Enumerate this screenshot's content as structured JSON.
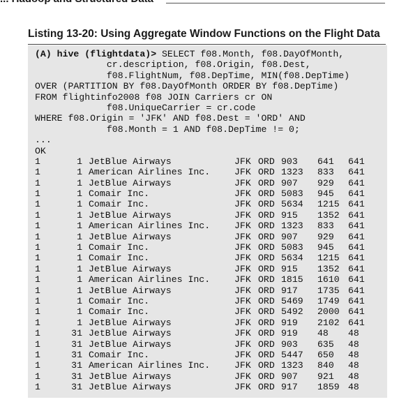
{
  "header": {
    "top_text": "... Hadoop and Structured Data",
    "listing_title": "Listing 13-20:   Using Aggregate Window Functions on the Flight Data"
  },
  "code": {
    "prompt": "(A) hive (flightdata)>",
    "query_lines": [
      " SELECT f08.Month, f08.DayOfMonth,",
      "             cr.description, f08.Origin, f08.Dest,",
      "             f08.FlightNum, f08.DepTime, MIN(f08.DepTime)",
      "OVER (PARTITION BY f08.DayOfMonth ORDER BY f08.DepTime)",
      "FROM flightinfo2008 f08 JOIN Carriers cr ON",
      "             f08.UniqueCarrier = cr.code",
      "WHERE f08.Origin = 'JFK' AND f08.Dest = 'ORD' AND",
      "             f08.Month = 1 AND f08.DepTime != 0;"
    ],
    "ellipsis": "...",
    "ok": "OK"
  },
  "results": [
    {
      "month": "1",
      "day": "1",
      "desc": "JetBlue Airways",
      "origin": "JFK",
      "dest": "ORD",
      "num": "903",
      "dep": "641",
      "min": "641"
    },
    {
      "month": "1",
      "day": "1",
      "desc": "American Airlines Inc.",
      "origin": "JFK",
      "dest": "ORD",
      "num": "1323",
      "dep": "833",
      "min": "641"
    },
    {
      "month": "1",
      "day": "1",
      "desc": "JetBlue Airways",
      "origin": "JFK",
      "dest": "ORD",
      "num": "907",
      "dep": "929",
      "min": "641"
    },
    {
      "month": "1",
      "day": "1",
      "desc": "Comair Inc.",
      "origin": "JFK",
      "dest": "ORD",
      "num": "5083",
      "dep": "945",
      "min": "641"
    },
    {
      "month": "1",
      "day": "1",
      "desc": "Comair Inc.",
      "origin": "JFK",
      "dest": "ORD",
      "num": "5634",
      "dep": "1215",
      "min": "641"
    },
    {
      "month": "1",
      "day": "1",
      "desc": "JetBlue Airways",
      "origin": "JFK",
      "dest": "ORD",
      "num": "915",
      "dep": "1352",
      "min": "641"
    },
    {
      "month": "1",
      "day": "1",
      "desc": "American Airlines Inc.",
      "origin": "JFK",
      "dest": "ORD",
      "num": "1323",
      "dep": "833",
      "min": "641"
    },
    {
      "month": "1",
      "day": "1",
      "desc": "JetBlue Airways",
      "origin": "JFK",
      "dest": "ORD",
      "num": "907",
      "dep": "929",
      "min": "641"
    },
    {
      "month": "1",
      "day": "1",
      "desc": "Comair Inc.",
      "origin": "JFK",
      "dest": "ORD",
      "num": "5083",
      "dep": "945",
      "min": "641"
    },
    {
      "month": "1",
      "day": "1",
      "desc": "Comair Inc.",
      "origin": "JFK",
      "dest": "ORD",
      "num": "5634",
      "dep": "1215",
      "min": "641"
    },
    {
      "month": "1",
      "day": "1",
      "desc": "JetBlue Airways",
      "origin": "JFK",
      "dest": "ORD",
      "num": "915",
      "dep": "1352",
      "min": "641"
    },
    {
      "month": "1",
      "day": "1",
      "desc": "American Airlines Inc.",
      "origin": "JFK",
      "dest": "ORD",
      "num": "1815",
      "dep": "1610",
      "min": "641"
    },
    {
      "month": "1",
      "day": "1",
      "desc": "JetBlue Airways",
      "origin": "JFK",
      "dest": "ORD",
      "num": "917",
      "dep": "1735",
      "min": "641"
    },
    {
      "month": "1",
      "day": "1",
      "desc": "Comair Inc.",
      "origin": "JFK",
      "dest": "ORD",
      "num": "5469",
      "dep": "1749",
      "min": "641"
    },
    {
      "month": "1",
      "day": "1",
      "desc": "Comair Inc.",
      "origin": "JFK",
      "dest": "ORD",
      "num": "5492",
      "dep": "2000",
      "min": "641"
    },
    {
      "month": "1",
      "day": "1",
      "desc": "JetBlue Airways",
      "origin": "JFK",
      "dest": "ORD",
      "num": "919",
      "dep": "2102",
      "min": "641"
    },
    {
      "month": "1",
      "day": "31",
      "desc": "JetBlue Airways",
      "origin": "JFK",
      "dest": "ORD",
      "num": "919",
      "dep": "48",
      "min": "48"
    },
    {
      "month": "1",
      "day": "31",
      "desc": "JetBlue Airways",
      "origin": "JFK",
      "dest": "ORD",
      "num": "903",
      "dep": "635",
      "min": "48"
    },
    {
      "month": "1",
      "day": "31",
      "desc": "Comair Inc.",
      "origin": "JFK",
      "dest": "ORD",
      "num": "5447",
      "dep": "650",
      "min": "48"
    },
    {
      "month": "1",
      "day": "31",
      "desc": "American Airlines Inc.",
      "origin": "JFK",
      "dest": "ORD",
      "num": "1323",
      "dep": "840",
      "min": "48"
    },
    {
      "month": "1",
      "day": "31",
      "desc": "JetBlue Airways",
      "origin": "JFK",
      "dest": "ORD",
      "num": "907",
      "dep": "921",
      "min": "48"
    },
    {
      "month": "1",
      "day": "31",
      "desc": "JetBlue Airways",
      "origin": "JFK",
      "dest": "ORD",
      "num": "917",
      "dep": "1859",
      "min": "48"
    }
  ]
}
